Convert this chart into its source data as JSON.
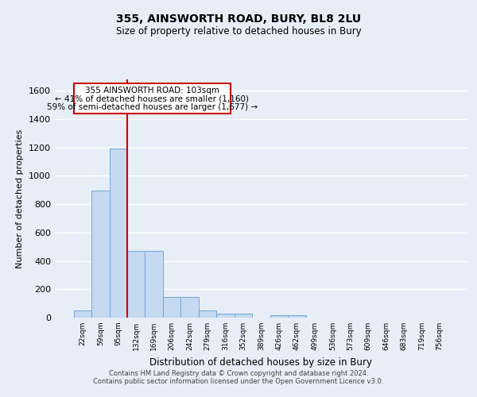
{
  "title": "355, AINSWORTH ROAD, BURY, BL8 2LU",
  "subtitle": "Size of property relative to detached houses in Bury",
  "xlabel": "Distribution of detached houses by size in Bury",
  "ylabel": "Number of detached properties",
  "bar_labels": [
    "22sqm",
    "59sqm",
    "95sqm",
    "132sqm",
    "169sqm",
    "206sqm",
    "242sqm",
    "279sqm",
    "316sqm",
    "352sqm",
    "389sqm",
    "426sqm",
    "462sqm",
    "499sqm",
    "536sqm",
    "573sqm",
    "609sqm",
    "646sqm",
    "683sqm",
    "719sqm",
    "756sqm"
  ],
  "bar_heights": [
    50,
    895,
    1195,
    468,
    468,
    148,
    148,
    52,
    28,
    28,
    0,
    18,
    18,
    0,
    0,
    0,
    0,
    0,
    0,
    0,
    0
  ],
  "bar_color": "#c5d9f1",
  "bar_edge_color": "#6fa8dc",
  "ylim": [
    0,
    1680
  ],
  "yticks": [
    0,
    200,
    400,
    600,
    800,
    1000,
    1200,
    1400,
    1600
  ],
  "vline_x": 2.5,
  "vline_color": "#cc0000",
  "annotation_line1": "355 AINSWORTH ROAD: 103sqm",
  "annotation_line2": "← 41% of detached houses are smaller (1,160)",
  "annotation_line3": "59% of semi-detached houses are larger (1,677) →",
  "bg_color": "#e8eef7",
  "grid_color": "#ffffff",
  "footer_text": "Contains HM Land Registry data © Crown copyright and database right 2024.\nContains public sector information licensed under the Open Government Licence v3.0."
}
